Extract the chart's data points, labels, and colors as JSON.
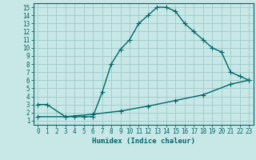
{
  "title": "",
  "xlabel": "Humidex (Indice chaleur)",
  "ylabel": "",
  "background_color": "#c8e8e8",
  "line_color": "#006666",
  "grid_color": "#a0c8c8",
  "xlim": [
    -0.5,
    23.5
  ],
  "ylim": [
    0.5,
    15.5
  ],
  "xticks": [
    0,
    1,
    2,
    3,
    4,
    5,
    6,
    7,
    8,
    9,
    10,
    11,
    12,
    13,
    14,
    15,
    16,
    17,
    18,
    19,
    20,
    21,
    22,
    23
  ],
  "yticks": [
    1,
    2,
    3,
    4,
    5,
    6,
    7,
    8,
    9,
    10,
    11,
    12,
    13,
    14,
    15
  ],
  "curve1_x": [
    0,
    1,
    3,
    4,
    5,
    6,
    7,
    8,
    9,
    10,
    11,
    12,
    13,
    14,
    15,
    16,
    17,
    18,
    19,
    20,
    21,
    22,
    23
  ],
  "curve1_y": [
    3,
    3,
    1.5,
    1.5,
    1.5,
    1.5,
    4.5,
    8,
    9.8,
    11,
    13,
    14,
    15,
    15,
    14.5,
    13,
    12,
    11,
    10,
    9.5,
    7,
    6.5,
    6
  ],
  "curve2_x": [
    0,
    3,
    6,
    9,
    12,
    15,
    18,
    21,
    23
  ],
  "curve2_y": [
    1.5,
    1.5,
    1.8,
    2.2,
    2.8,
    3.5,
    4.2,
    5.5,
    6
  ],
  "marker": "+",
  "markersize": 4,
  "linewidth": 1.0,
  "tick_fontsize": 5.5,
  "xlabel_fontsize": 6.5,
  "xlabel_fontweight": "bold"
}
